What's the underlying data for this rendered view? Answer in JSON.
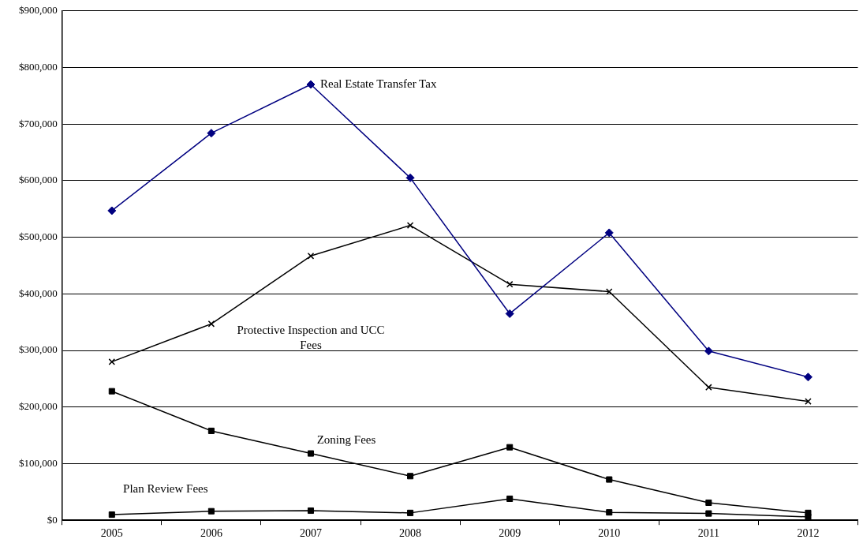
{
  "chart_data": {
    "type": "line",
    "categories": [
      "2005",
      "2006",
      "2007",
      "2008",
      "2009",
      "2010",
      "2011",
      "2012"
    ],
    "series": [
      {
        "name": "Real Estate Transfer Tax",
        "color": "#000080",
        "marker": "diamond",
        "values": [
          547000,
          684000,
          770000,
          605000,
          365000,
          508000,
          299000,
          253000
        ]
      },
      {
        "name": "Protective Inspection and UCC Fees",
        "color": "#000000",
        "marker": "cross",
        "values": [
          280000,
          347000,
          467000,
          521000,
          417000,
          404000,
          235000,
          210000
        ]
      },
      {
        "name": "Zoning Fees",
        "color": "#000000",
        "marker": "square",
        "values": [
          228000,
          158000,
          118000,
          78000,
          129000,
          72000,
          31000,
          13000
        ]
      },
      {
        "name": "Plan Review Fees",
        "color": "#000000",
        "marker": "square",
        "values": [
          10000,
          16000,
          17000,
          13000,
          38000,
          14000,
          12000,
          6000
        ]
      }
    ],
    "ylim": [
      0,
      900000
    ],
    "yticks": [
      {
        "value": 0,
        "label": "$0"
      },
      {
        "value": 100000,
        "label": "$100,000"
      },
      {
        "value": 200000,
        "label": "$200,000"
      },
      {
        "value": 300000,
        "label": "$300,000"
      },
      {
        "value": 400000,
        "label": "$400,000"
      },
      {
        "value": 500000,
        "label": "$500,000"
      },
      {
        "value": 600000,
        "label": "$600,000"
      },
      {
        "value": 700000,
        "label": "$700,000"
      },
      {
        "value": 800000,
        "label": "$800,000"
      },
      {
        "value": 900000,
        "label": "$900,000"
      }
    ],
    "grid": "y",
    "legend": false,
    "line_style": "solid"
  }
}
